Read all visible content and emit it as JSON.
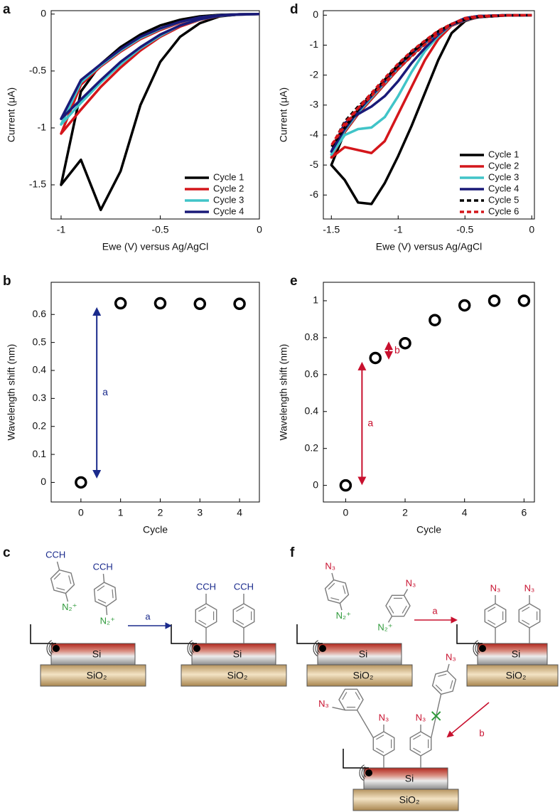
{
  "chart_data": [
    {
      "panel": "a",
      "type": "line",
      "x_label": "Ewe (V) versus Ag/AgCl",
      "y_label": "Current (μA)",
      "x": [
        0,
        -0.1,
        -0.2,
        -0.3,
        -0.4,
        -0.5,
        -0.6,
        -0.7,
        -0.8,
        -0.9,
        -1,
        -0.9,
        -0.8,
        -0.7,
        -0.6,
        -0.5,
        -0.4,
        -0.3,
        -0.2,
        -0.1,
        0
      ],
      "series": [
        {
          "name": "Cycle 1",
          "color": "#000000",
          "values": [
            0,
            -0.003,
            -0.02,
            -0.08,
            -0.2,
            -0.42,
            -0.8,
            -1.38,
            -1.72,
            -1.28,
            -1.5,
            -0.68,
            -0.44,
            -0.29,
            -0.18,
            -0.1,
            -0.05,
            -0.02,
            -0.007,
            -0.002,
            0
          ]
        },
        {
          "name": "Cycle 2",
          "color": "#d4161b",
          "values": [
            0,
            -0.004,
            -0.016,
            -0.05,
            -0.11,
            -0.2,
            -0.32,
            -0.47,
            -0.64,
            -0.84,
            -1.05,
            -0.62,
            -0.46,
            -0.33,
            -0.22,
            -0.14,
            -0.075,
            -0.032,
            -0.011,
            -0.002,
            0
          ]
        },
        {
          "name": "Cycle 3",
          "color": "#40c4c8",
          "values": [
            0,
            -0.004,
            -0.015,
            -0.047,
            -0.1,
            -0.19,
            -0.3,
            -0.44,
            -0.6,
            -0.78,
            -0.97,
            -0.6,
            -0.45,
            -0.32,
            -0.21,
            -0.13,
            -0.07,
            -0.03,
            -0.01,
            -0.002,
            0
          ]
        },
        {
          "name": "Cycle 4",
          "color": "#1a1a78",
          "values": [
            0,
            -0.004,
            -0.014,
            -0.045,
            -0.1,
            -0.18,
            -0.29,
            -0.42,
            -0.58,
            -0.75,
            -0.92,
            -0.58,
            -0.44,
            -0.31,
            -0.2,
            -0.125,
            -0.068,
            -0.029,
            -0.01,
            -0.002,
            0
          ]
        }
      ],
      "xlim": [
        -1.05,
        0
      ],
      "xticks": [
        -1,
        -0.5,
        0
      ],
      "ylim": [
        -1.8,
        0.03
      ],
      "yticks": [
        -1.5,
        -1,
        -0.5,
        0
      ],
      "legend": "lower right"
    },
    {
      "panel": "d",
      "type": "line",
      "x_label": "Ewe (V) versus Ag/AgCl",
      "y_label": "Current (μA)",
      "x": [
        0,
        -0.2,
        -0.4,
        -0.5,
        -0.6,
        -0.7,
        -0.8,
        -0.9,
        -1,
        -1.1,
        -1.2,
        -1.3,
        -1.4,
        -1.5,
        -1.4,
        -1.3,
        -1.2,
        -1.1,
        -1,
        -0.9,
        -0.8,
        -0.7,
        -0.6,
        -0.5,
        -0.4,
        -0.2,
        0
      ],
      "series": [
        {
          "name": "Cycle 1",
          "color": "#000000",
          "values": [
            0,
            -0.005,
            -0.05,
            -0.2,
            -0.6,
            -1.5,
            -2.6,
            -3.7,
            -4.7,
            -5.6,
            -6.3,
            -6.25,
            -5.5,
            -5.0,
            -3.9,
            -3.3,
            -2.8,
            -2.3,
            -1.8,
            -1.35,
            -0.95,
            -0.6,
            -0.35,
            -0.18,
            -0.07,
            -0.01,
            0
          ]
        },
        {
          "name": "Cycle 2",
          "color": "#d4161b",
          "values": [
            0,
            -0.004,
            -0.03,
            -0.12,
            -0.35,
            -0.8,
            -1.5,
            -2.4,
            -3.3,
            -4.2,
            -4.6,
            -4.5,
            -4.4,
            -4.75,
            -3.9,
            -3.3,
            -2.8,
            -2.3,
            -1.8,
            -1.35,
            -0.95,
            -0.6,
            -0.35,
            -0.18,
            -0.07,
            -0.01,
            0
          ]
        },
        {
          "name": "Cycle 3",
          "color": "#40c4c8",
          "values": [
            0,
            -0.004,
            -0.03,
            -0.1,
            -0.3,
            -0.7,
            -1.2,
            -1.9,
            -2.7,
            -3.4,
            -3.75,
            -3.8,
            -4.0,
            -4.65,
            -3.85,
            -3.25,
            -2.75,
            -2.25,
            -1.75,
            -1.3,
            -0.92,
            -0.58,
            -0.33,
            -0.17,
            -0.065,
            -0.01,
            0
          ]
        },
        {
          "name": "Cycle 4",
          "color": "#1a1a78",
          "values": [
            0,
            -0.004,
            -0.03,
            -0.1,
            -0.3,
            -0.65,
            -1.1,
            -1.6,
            -2.2,
            -2.7,
            -3.05,
            -3.3,
            -3.6,
            -4.55,
            -3.8,
            -3.2,
            -2.7,
            -2.2,
            -1.7,
            -1.27,
            -0.9,
            -0.56,
            -0.32,
            -0.16,
            -0.06,
            -0.01,
            0
          ]
        },
        {
          "name": "Cycle 5",
          "color": "#000000",
          "dashed": true,
          "values": [
            0,
            -0.004,
            -0.03,
            -0.1,
            -0.3,
            -0.6,
            -0.95,
            -1.35,
            -1.75,
            -2.2,
            -2.65,
            -3.05,
            -3.55,
            -4.4,
            -3.75,
            -3.15,
            -2.65,
            -2.15,
            -1.65,
            -1.23,
            -0.87,
            -0.54,
            -0.3,
            -0.15,
            -0.06,
            -0.01,
            0
          ]
        },
        {
          "name": "Cycle 6",
          "color": "#d4161b",
          "dashed": true,
          "values": [
            0,
            -0.004,
            -0.03,
            -0.1,
            -0.3,
            -0.62,
            -0.98,
            -1.38,
            -1.8,
            -2.25,
            -2.7,
            -3.1,
            -3.6,
            -4.35,
            -3.7,
            -3.1,
            -2.6,
            -2.1,
            -1.62,
            -1.2,
            -0.85,
            -0.52,
            -0.29,
            -0.14,
            -0.055,
            -0.01,
            0
          ]
        }
      ],
      "xlim": [
        -1.56,
        0.02
      ],
      "xticks": [
        -1.5,
        -1,
        -0.5,
        0
      ],
      "ylim": [
        -6.8,
        0.15
      ],
      "yticks": [
        -6,
        -5,
        -4,
        -3,
        -2,
        -1,
        0
      ],
      "legend": "lower right"
    },
    {
      "panel": "b",
      "type": "scatter",
      "x_label": "Cycle",
      "y_label": "Wavelength shift (nm)",
      "x": [
        0,
        1,
        2,
        3,
        4
      ],
      "values": [
        0,
        0.64,
        0.64,
        0.638,
        0.638
      ],
      "color": "#000000",
      "xlim": [
        -0.75,
        4.5
      ],
      "xticks": [
        0,
        1,
        2,
        3,
        4
      ],
      "ylim": [
        -0.07,
        0.715
      ],
      "yticks": [
        0,
        0.1,
        0.2,
        0.3,
        0.4,
        0.5,
        0.6
      ],
      "annotations": [
        {
          "text": "a",
          "x": 0.4,
          "y_start": 0.02,
          "y_end": 0.62,
          "color": "#1a2a8c"
        }
      ]
    },
    {
      "panel": "e",
      "type": "scatter",
      "x_label": "Cycle",
      "y_label": "Wavelength shift (nm)",
      "x": [
        0,
        1,
        2,
        3,
        4,
        5,
        6
      ],
      "values": [
        0,
        0.69,
        0.77,
        0.895,
        0.975,
        1,
        1
      ],
      "color": "#000000",
      "xlim": [
        -0.75,
        6.35
      ],
      "xticks": [
        0,
        2,
        4,
        6
      ],
      "ylim": [
        -0.09,
        1.1
      ],
      "yticks": [
        0,
        0.2,
        0.4,
        0.6,
        0.8,
        1
      ],
      "annotations": [
        {
          "text": "a",
          "x": 0.55,
          "y_start": 0.01,
          "y_end": 0.66,
          "color": "#c8102e"
        },
        {
          "text": "b",
          "x": 1.45,
          "y_start": 0.69,
          "y_end": 0.77,
          "color": "#c8102e"
        }
      ]
    }
  ],
  "diagrams": {
    "c": {
      "label": "c",
      "reactants": [
        {
          "group": "CCH",
          "leaving": "N₂⁺"
        },
        {
          "group": "CCH",
          "leaving": "N₂⁺"
        }
      ],
      "arrows": [
        "a"
      ],
      "products": [
        "CCH",
        "CCH"
      ],
      "substrates": [
        {
          "top": "Si",
          "bottom": "SiO₂"
        },
        {
          "top": "Si",
          "bottom": "SiO₂"
        }
      ]
    },
    "f": {
      "label": "f",
      "reactants": [
        {
          "group": "N₃",
          "leaving": "N₂⁺"
        },
        {
          "group": "N₃",
          "leaving": "N₂⁺"
        }
      ],
      "arrows": [
        "a",
        "b"
      ],
      "products": [
        "N₃",
        "N₃"
      ],
      "final_products": [
        "N₃",
        "N₃",
        "N₃",
        "N₃"
      ],
      "substrates": [
        {
          "top": "Si",
          "bottom": "SiO₂"
        },
        {
          "top": "Si",
          "bottom": "SiO₂"
        },
        {
          "top": "Si",
          "bottom": "SiO₂"
        }
      ]
    }
  }
}
